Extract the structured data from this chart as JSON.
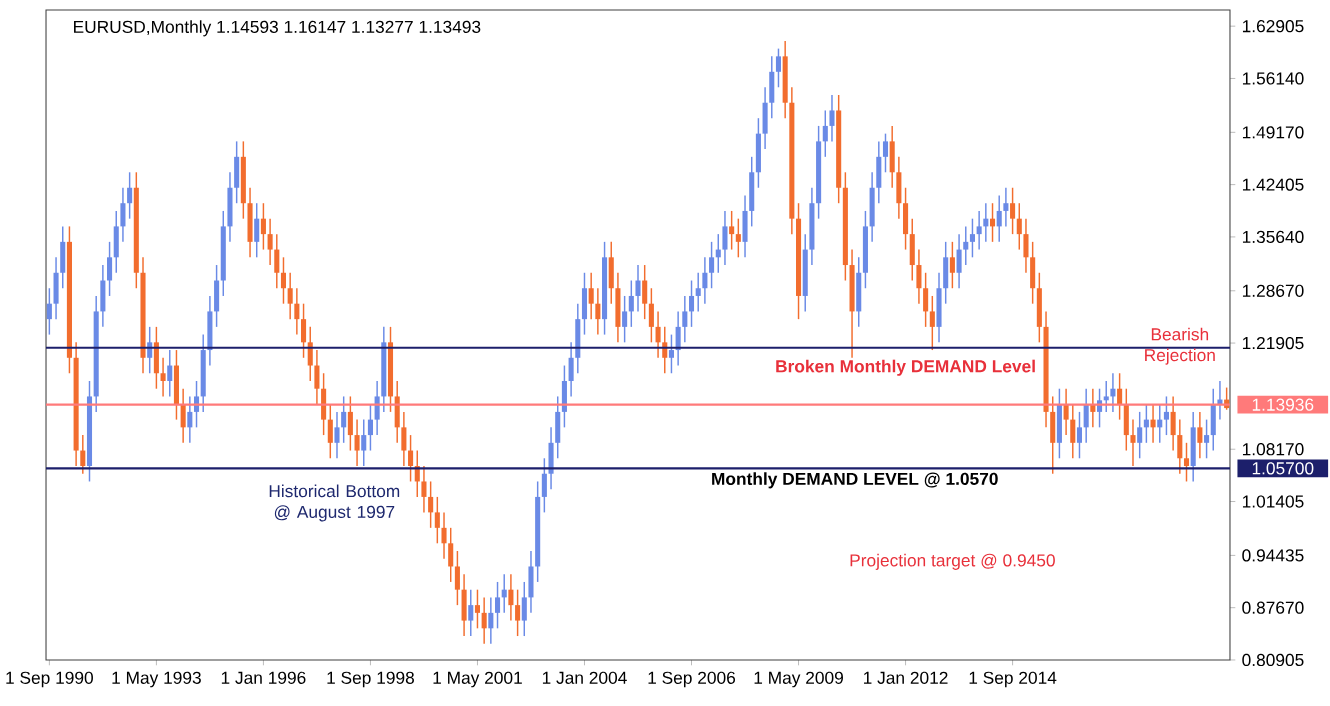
{
  "chart_data": {
    "type": "candlestick",
    "title": "EURUSD,Monthly 1.14593 1.16147 1.13277 1.13493",
    "categories": [
      "1 Sep 1990",
      null,
      null,
      null,
      null,
      null,
      null,
      null,
      null,
      null,
      null,
      null,
      null,
      null,
      null,
      null,
      "1 May 1993",
      null,
      null,
      null,
      null,
      null,
      null,
      null,
      null,
      null,
      null,
      null,
      null,
      null,
      null,
      null,
      "1 Jan 1996",
      null,
      null,
      null,
      null,
      null,
      null,
      null,
      null,
      null,
      null,
      null,
      null,
      null,
      null,
      null,
      "1 Sep 1998",
      null,
      null,
      null,
      null,
      null,
      null,
      null,
      null,
      null,
      null,
      null,
      null,
      null,
      null,
      null,
      "1 May 2001",
      null,
      null,
      null,
      null,
      null,
      null,
      null,
      null,
      null,
      null,
      null,
      null,
      null,
      null,
      null,
      "1 Jan 2004",
      null,
      null,
      null,
      null,
      null,
      null,
      null,
      null,
      null,
      null,
      null,
      null,
      null,
      null,
      null,
      "1 Sep 2006",
      null,
      null,
      null,
      null,
      null,
      null,
      null,
      null,
      null,
      null,
      null,
      null,
      null,
      null,
      null,
      "1 May 2009",
      null,
      null,
      null,
      null,
      null,
      null,
      null,
      null,
      null,
      null,
      null,
      null,
      null,
      null,
      null,
      "1 Jan 2012",
      null,
      null,
      null,
      null,
      null,
      null,
      null,
      null,
      null,
      null,
      null,
      null,
      null,
      null,
      null,
      "1 Sep 2014",
      null,
      null,
      null,
      null,
      null,
      null,
      null,
      null,
      null,
      null,
      null,
      null,
      null,
      null,
      null,
      null,
      null,
      null,
      null,
      null,
      null,
      null,
      null,
      null,
      null,
      null,
      null,
      null,
      null,
      null,
      null,
      null
    ],
    "ohlc": [
      [
        1.25,
        1.29,
        1.23,
        1.27
      ],
      [
        1.27,
        1.33,
        1.25,
        1.31
      ],
      [
        1.31,
        1.37,
        1.29,
        1.35
      ],
      [
        1.35,
        1.37,
        1.18,
        1.2
      ],
      [
        1.2,
        1.22,
        1.06,
        1.08
      ],
      [
        1.08,
        1.1,
        1.05,
        1.06
      ],
      [
        1.06,
        1.17,
        1.04,
        1.15
      ],
      [
        1.15,
        1.28,
        1.13,
        1.26
      ],
      [
        1.26,
        1.32,
        1.24,
        1.3
      ],
      [
        1.3,
        1.35,
        1.28,
        1.33
      ],
      [
        1.33,
        1.39,
        1.31,
        1.37
      ],
      [
        1.37,
        1.42,
        1.35,
        1.4
      ],
      [
        1.4,
        1.44,
        1.38,
        1.42
      ],
      [
        1.42,
        1.44,
        1.29,
        1.31
      ],
      [
        1.31,
        1.33,
        1.18,
        1.2
      ],
      [
        1.2,
        1.24,
        1.18,
        1.22
      ],
      [
        1.22,
        1.24,
        1.16,
        1.18
      ],
      [
        1.18,
        1.2,
        1.15,
        1.17
      ],
      [
        1.17,
        1.21,
        1.15,
        1.19
      ],
      [
        1.19,
        1.21,
        1.12,
        1.14
      ],
      [
        1.14,
        1.16,
        1.09,
        1.11
      ],
      [
        1.11,
        1.15,
        1.09,
        1.13
      ],
      [
        1.13,
        1.17,
        1.11,
        1.15
      ],
      [
        1.15,
        1.23,
        1.13,
        1.21
      ],
      [
        1.21,
        1.28,
        1.19,
        1.26
      ],
      [
        1.26,
        1.32,
        1.24,
        1.3
      ],
      [
        1.3,
        1.39,
        1.28,
        1.37
      ],
      [
        1.37,
        1.44,
        1.35,
        1.42
      ],
      [
        1.42,
        1.48,
        1.4,
        1.46
      ],
      [
        1.46,
        1.48,
        1.38,
        1.4
      ],
      [
        1.4,
        1.42,
        1.33,
        1.35
      ],
      [
        1.35,
        1.4,
        1.33,
        1.38
      ],
      [
        1.38,
        1.4,
        1.34,
        1.36
      ],
      [
        1.36,
        1.38,
        1.32,
        1.34
      ],
      [
        1.34,
        1.36,
        1.29,
        1.31
      ],
      [
        1.31,
        1.33,
        1.27,
        1.29
      ],
      [
        1.29,
        1.31,
        1.25,
        1.27
      ],
      [
        1.27,
        1.29,
        1.23,
        1.25
      ],
      [
        1.25,
        1.27,
        1.2,
        1.22
      ],
      [
        1.22,
        1.24,
        1.17,
        1.19
      ],
      [
        1.19,
        1.21,
        1.14,
        1.16
      ],
      [
        1.16,
        1.18,
        1.1,
        1.12
      ],
      [
        1.12,
        1.14,
        1.07,
        1.09
      ],
      [
        1.09,
        1.13,
        1.07,
        1.11
      ],
      [
        1.11,
        1.15,
        1.09,
        1.13
      ],
      [
        1.13,
        1.15,
        1.08,
        1.1
      ],
      [
        1.1,
        1.12,
        1.06,
        1.08
      ],
      [
        1.08,
        1.12,
        1.06,
        1.1
      ],
      [
        1.1,
        1.14,
        1.08,
        1.12
      ],
      [
        1.12,
        1.17,
        1.1,
        1.15
      ],
      [
        1.15,
        1.24,
        1.13,
        1.22
      ],
      [
        1.22,
        1.24,
        1.13,
        1.15
      ],
      [
        1.15,
        1.17,
        1.09,
        1.11
      ],
      [
        1.11,
        1.13,
        1.06,
        1.08
      ],
      [
        1.08,
        1.1,
        1.04,
        1.06
      ],
      [
        1.06,
        1.08,
        1.02,
        1.04
      ],
      [
        1.04,
        1.06,
        1.0,
        1.02
      ],
      [
        1.02,
        1.04,
        0.98,
        1.0
      ],
      [
        1.0,
        1.02,
        0.96,
        0.98
      ],
      [
        0.98,
        1.0,
        0.94,
        0.96
      ],
      [
        0.96,
        0.98,
        0.91,
        0.93
      ],
      [
        0.93,
        0.95,
        0.88,
        0.9
      ],
      [
        0.9,
        0.92,
        0.84,
        0.86
      ],
      [
        0.86,
        0.9,
        0.84,
        0.88
      ],
      [
        0.88,
        0.9,
        0.85,
        0.87
      ],
      [
        0.87,
        0.89,
        0.83,
        0.85
      ],
      [
        0.85,
        0.89,
        0.83,
        0.87
      ],
      [
        0.87,
        0.91,
        0.85,
        0.89
      ],
      [
        0.89,
        0.92,
        0.87,
        0.9
      ],
      [
        0.9,
        0.92,
        0.86,
        0.88
      ],
      [
        0.88,
        0.9,
        0.84,
        0.86
      ],
      [
        0.86,
        0.91,
        0.84,
        0.89
      ],
      [
        0.89,
        0.95,
        0.87,
        0.93
      ],
      [
        0.93,
        1.04,
        0.91,
        1.02
      ],
      [
        1.02,
        1.07,
        1.0,
        1.05
      ],
      [
        1.05,
        1.11,
        1.03,
        1.09
      ],
      [
        1.09,
        1.15,
        1.07,
        1.13
      ],
      [
        1.13,
        1.19,
        1.11,
        1.17
      ],
      [
        1.17,
        1.22,
        1.15,
        1.2
      ],
      [
        1.2,
        1.27,
        1.18,
        1.25
      ],
      [
        1.25,
        1.31,
        1.23,
        1.29
      ],
      [
        1.29,
        1.31,
        1.25,
        1.27
      ],
      [
        1.27,
        1.29,
        1.23,
        1.25
      ],
      [
        1.25,
        1.35,
        1.23,
        1.33
      ],
      [
        1.33,
        1.35,
        1.27,
        1.29
      ],
      [
        1.29,
        1.31,
        1.22,
        1.24
      ],
      [
        1.24,
        1.28,
        1.22,
        1.26
      ],
      [
        1.26,
        1.3,
        1.24,
        1.28
      ],
      [
        1.28,
        1.32,
        1.26,
        1.3
      ],
      [
        1.3,
        1.32,
        1.25,
        1.27
      ],
      [
        1.27,
        1.29,
        1.22,
        1.24
      ],
      [
        1.24,
        1.26,
        1.2,
        1.22
      ],
      [
        1.22,
        1.24,
        1.18,
        1.2
      ],
      [
        1.2,
        1.23,
        1.18,
        1.21
      ],
      [
        1.21,
        1.26,
        1.19,
        1.24
      ],
      [
        1.24,
        1.28,
        1.22,
        1.26
      ],
      [
        1.26,
        1.3,
        1.24,
        1.28
      ],
      [
        1.28,
        1.31,
        1.26,
        1.29
      ],
      [
        1.29,
        1.33,
        1.27,
        1.31
      ],
      [
        1.31,
        1.35,
        1.29,
        1.33
      ],
      [
        1.33,
        1.36,
        1.31,
        1.34
      ],
      [
        1.34,
        1.39,
        1.32,
        1.37
      ],
      [
        1.37,
        1.39,
        1.34,
        1.36
      ],
      [
        1.36,
        1.38,
        1.33,
        1.35
      ],
      [
        1.35,
        1.41,
        1.33,
        1.39
      ],
      [
        1.39,
        1.46,
        1.37,
        1.44
      ],
      [
        1.44,
        1.51,
        1.42,
        1.49
      ],
      [
        1.49,
        1.55,
        1.47,
        1.53
      ],
      [
        1.53,
        1.59,
        1.51,
        1.57
      ],
      [
        1.57,
        1.6,
        1.55,
        1.59
      ],
      [
        1.59,
        1.61,
        1.51,
        1.53
      ],
      [
        1.53,
        1.55,
        1.36,
        1.38
      ],
      [
        1.38,
        1.4,
        1.25,
        1.28
      ],
      [
        1.28,
        1.36,
        1.26,
        1.34
      ],
      [
        1.34,
        1.42,
        1.32,
        1.4
      ],
      [
        1.4,
        1.5,
        1.38,
        1.48
      ],
      [
        1.48,
        1.52,
        1.46,
        1.5
      ],
      [
        1.5,
        1.54,
        1.48,
        1.52
      ],
      [
        1.52,
        1.54,
        1.4,
        1.42
      ],
      [
        1.42,
        1.44,
        1.3,
        1.32
      ],
      [
        1.32,
        1.34,
        1.2,
        1.26
      ],
      [
        1.26,
        1.33,
        1.24,
        1.31
      ],
      [
        1.31,
        1.39,
        1.29,
        1.37
      ],
      [
        1.37,
        1.44,
        1.35,
        1.42
      ],
      [
        1.42,
        1.48,
        1.4,
        1.46
      ],
      [
        1.46,
        1.49,
        1.44,
        1.48
      ],
      [
        1.48,
        1.5,
        1.42,
        1.44
      ],
      [
        1.44,
        1.46,
        1.38,
        1.4
      ],
      [
        1.4,
        1.42,
        1.34,
        1.36
      ],
      [
        1.36,
        1.38,
        1.3,
        1.32
      ],
      [
        1.32,
        1.34,
        1.27,
        1.29
      ],
      [
        1.29,
        1.31,
        1.24,
        1.26
      ],
      [
        1.26,
        1.28,
        1.21,
        1.24
      ],
      [
        1.24,
        1.31,
        1.22,
        1.29
      ],
      [
        1.29,
        1.35,
        1.27,
        1.33
      ],
      [
        1.33,
        1.35,
        1.29,
        1.31
      ],
      [
        1.31,
        1.36,
        1.29,
        1.34
      ],
      [
        1.34,
        1.37,
        1.32,
        1.35
      ],
      [
        1.35,
        1.38,
        1.33,
        1.36
      ],
      [
        1.36,
        1.39,
        1.34,
        1.37
      ],
      [
        1.37,
        1.4,
        1.35,
        1.38
      ],
      [
        1.38,
        1.4,
        1.35,
        1.37
      ],
      [
        1.37,
        1.41,
        1.35,
        1.39
      ],
      [
        1.39,
        1.42,
        1.37,
        1.4
      ],
      [
        1.4,
        1.42,
        1.36,
        1.38
      ],
      [
        1.38,
        1.4,
        1.34,
        1.36
      ],
      [
        1.36,
        1.38,
        1.31,
        1.33
      ],
      [
        1.33,
        1.35,
        1.27,
        1.29
      ],
      [
        1.29,
        1.31,
        1.22,
        1.24
      ],
      [
        1.24,
        1.26,
        1.11,
        1.13
      ],
      [
        1.13,
        1.15,
        1.05,
        1.09
      ],
      [
        1.09,
        1.16,
        1.07,
        1.14
      ],
      [
        1.14,
        1.16,
        1.1,
        1.12
      ],
      [
        1.12,
        1.14,
        1.07,
        1.09
      ],
      [
        1.09,
        1.13,
        1.07,
        1.11
      ],
      [
        1.11,
        1.16,
        1.09,
        1.14
      ],
      [
        1.14,
        1.16,
        1.11,
        1.13
      ],
      [
        1.13,
        1.16,
        1.11,
        1.145
      ],
      [
        1.145,
        1.17,
        1.13,
        1.15
      ],
      [
        1.15,
        1.18,
        1.13,
        1.16
      ],
      [
        1.16,
        1.18,
        1.12,
        1.14
      ],
      [
        1.14,
        1.16,
        1.08,
        1.1
      ],
      [
        1.1,
        1.12,
        1.06,
        1.09
      ],
      [
        1.09,
        1.13,
        1.07,
        1.11
      ],
      [
        1.11,
        1.14,
        1.09,
        1.12
      ],
      [
        1.12,
        1.14,
        1.09,
        1.11
      ],
      [
        1.11,
        1.14,
        1.09,
        1.12
      ],
      [
        1.12,
        1.15,
        1.1,
        1.13
      ],
      [
        1.13,
        1.15,
        1.08,
        1.1
      ],
      [
        1.1,
        1.12,
        1.05,
        1.07
      ],
      [
        1.07,
        1.09,
        1.04,
        1.06
      ],
      [
        1.06,
        1.13,
        1.04,
        1.11
      ],
      [
        1.11,
        1.13,
        1.07,
        1.09
      ],
      [
        1.09,
        1.12,
        1.07,
        1.1
      ],
      [
        1.1,
        1.16,
        1.08,
        1.14
      ],
      [
        1.14,
        1.17,
        1.12,
        1.146
      ],
      [
        1.14593,
        1.16147,
        1.13277,
        1.13493
      ]
    ],
    "colors": [
      "#6a8ae6",
      "#6a8ae6",
      "#6a8ae6",
      "#f26d2e",
      "#f26d2e",
      "#f26d2e",
      "#6a8ae6",
      "#6a8ae6",
      "#6a8ae6",
      "#6a8ae6",
      "#6a8ae6",
      "#6a8ae6",
      "#6a8ae6",
      "#f26d2e",
      "#f26d2e",
      "#6a8ae6",
      "#f26d2e",
      "#f26d2e",
      "#6a8ae6",
      "#f26d2e",
      "#f26d2e",
      "#6a8ae6",
      "#6a8ae6",
      "#6a8ae6",
      "#6a8ae6",
      "#6a8ae6",
      "#6a8ae6",
      "#6a8ae6",
      "#6a8ae6",
      "#f26d2e",
      "#f26d2e",
      "#6a8ae6",
      "#f26d2e",
      "#f26d2e",
      "#f26d2e",
      "#f26d2e",
      "#f26d2e",
      "#f26d2e",
      "#f26d2e",
      "#f26d2e",
      "#f26d2e",
      "#f26d2e",
      "#f26d2e",
      "#6a8ae6",
      "#6a8ae6",
      "#f26d2e",
      "#f26d2e",
      "#6a8ae6",
      "#6a8ae6",
      "#6a8ae6",
      "#6a8ae6",
      "#f26d2e",
      "#f26d2e",
      "#f26d2e",
      "#f26d2e",
      "#f26d2e",
      "#f26d2e",
      "#f26d2e",
      "#f26d2e",
      "#f26d2e",
      "#f26d2e",
      "#f26d2e",
      "#f26d2e",
      "#6a8ae6",
      "#f26d2e",
      "#f26d2e",
      "#6a8ae6",
      "#6a8ae6",
      "#6a8ae6",
      "#f26d2e",
      "#f26d2e",
      "#6a8ae6",
      "#6a8ae6",
      "#6a8ae6",
      "#6a8ae6",
      "#6a8ae6",
      "#6a8ae6",
      "#6a8ae6",
      "#6a8ae6",
      "#6a8ae6",
      "#6a8ae6",
      "#f26d2e",
      "#f26d2e",
      "#6a8ae6",
      "#f26d2e",
      "#f26d2e",
      "#6a8ae6",
      "#6a8ae6",
      "#6a8ae6",
      "#f26d2e",
      "#f26d2e",
      "#f26d2e",
      "#f26d2e",
      "#6a8ae6",
      "#6a8ae6",
      "#6a8ae6",
      "#6a8ae6",
      "#6a8ae6",
      "#6a8ae6",
      "#6a8ae6",
      "#6a8ae6",
      "#6a8ae6",
      "#f26d2e",
      "#f26d2e",
      "#6a8ae6",
      "#6a8ae6",
      "#6a8ae6",
      "#6a8ae6",
      "#6a8ae6",
      "#6a8ae6",
      "#f26d2e",
      "#f26d2e",
      "#f26d2e",
      "#6a8ae6",
      "#6a8ae6",
      "#6a8ae6",
      "#6a8ae6",
      "#6a8ae6",
      "#f26d2e",
      "#f26d2e",
      "#f26d2e",
      "#6a8ae6",
      "#6a8ae6",
      "#6a8ae6",
      "#6a8ae6",
      "#6a8ae6",
      "#f26d2e",
      "#f26d2e",
      "#f26d2e",
      "#f26d2e",
      "#f26d2e",
      "#f26d2e",
      "#f26d2e",
      "#6a8ae6",
      "#6a8ae6",
      "#f26d2e",
      "#6a8ae6",
      "#6a8ae6",
      "#6a8ae6",
      "#6a8ae6",
      "#6a8ae6",
      "#f26d2e",
      "#6a8ae6",
      "#6a8ae6",
      "#f26d2e",
      "#f26d2e",
      "#f26d2e",
      "#f26d2e",
      "#f26d2e",
      "#f26d2e",
      "#f26d2e",
      "#6a8ae6",
      "#f26d2e",
      "#f26d2e",
      "#6a8ae6",
      "#6a8ae6",
      "#f26d2e",
      "#6a8ae6",
      "#6a8ae6",
      "#6a8ae6",
      "#f26d2e",
      "#f26d2e",
      "#f26d2e",
      "#6a8ae6",
      "#6a8ae6",
      "#f26d2e",
      "#6a8ae6",
      "#6a8ae6",
      "#f26d2e",
      "#f26d2e",
      "#f26d2e",
      "#6a8ae6",
      "#f26d2e",
      "#6a8ae6",
      "#6a8ae6",
      "#6a8ae6",
      "#f26d2e"
    ],
    "ylim": [
      0.80905,
      1.65
    ],
    "yticks": [
      0.80905,
      {
        "value": 0.8767,
        "label": "0.87670"
      },
      0.94435,
      1.01405,
      {
        "value": 1.0817,
        "label": "1.08170"
      },
      1.21905,
      {
        "value": 1.2867,
        "label": "1.28670"
      },
      {
        "value": 1.3564,
        "label": "1.35640"
      },
      1.42405,
      {
        "value": 1.4917,
        "label": "1.49170"
      },
      {
        "value": 1.5614,
        "label": "1.56140"
      },
      1.62905
    ],
    "ref_lines": [
      {
        "axis": "y",
        "value": 1.13936,
        "label": "1.13936",
        "color": "#ff7a7a"
      },
      {
        "axis": "y",
        "value": 1.057,
        "label": "1.05700",
        "color": "#1c1f6b"
      },
      {
        "axis": "y",
        "value": 1.213,
        "color": "#1c1f6b"
      }
    ],
    "annotations": [
      {
        "text": "Historical Bottom @ August 1997",
        "y": 1.057
      },
      {
        "text": "Monthly DEMAND LEVEL @ 1.0570",
        "y": 1.057
      },
      {
        "text": "Broken Monthly DEMAND Level",
        "y": 1.213
      },
      "Bearish Rejection",
      "Projection target @ 0.9450"
    ]
  }
}
